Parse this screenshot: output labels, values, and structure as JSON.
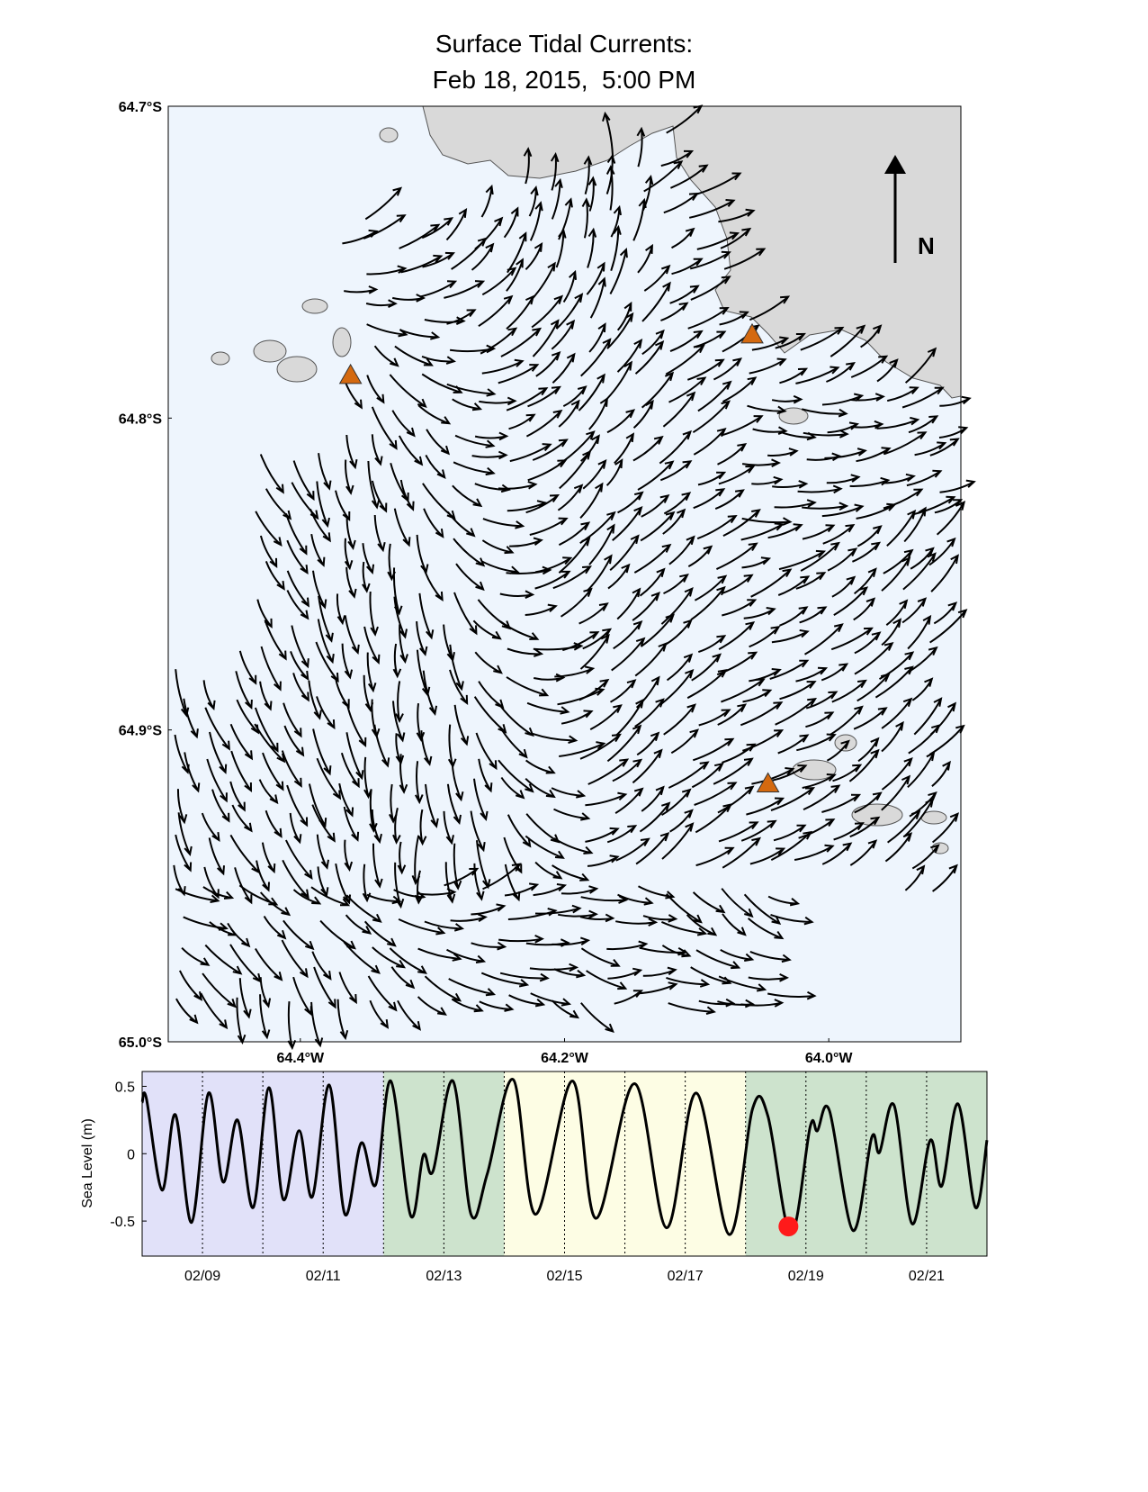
{
  "chart_data": [
    {
      "type": "map",
      "title": "Surface Tidal Currents:",
      "subtitle": "Feb 18, 2015,  5:00 PM",
      "xlim": [
        -64.5,
        -63.9
      ],
      "xticks": [
        {
          "value": -64.4,
          "label": "64.4°W"
        },
        {
          "value": -64.2,
          "label": "64.2°W"
        },
        {
          "value": -64.0,
          "label": "64.0°W"
        }
      ],
      "ylim": [
        -65.0,
        -64.7
      ],
      "yticks": [
        {
          "value": -64.7,
          "label": "64.7°S"
        },
        {
          "value": -64.8,
          "label": "64.8°S"
        },
        {
          "value": -64.9,
          "label": "64.9°S"
        },
        {
          "value": -65.0,
          "label": "65.0°S"
        }
      ],
      "stations": {
        "lon": [
          -64.362,
          -64.058,
          -64.046
        ],
        "lat": [
          -64.786,
          -64.773,
          -64.917
        ],
        "color": "#d4690f"
      },
      "north_label": "N",
      "water_color": "#eef5fd",
      "land_color": "#d9d9d9"
    },
    {
      "type": "line",
      "ylabel": "Sea Level (m)",
      "color": "#000000",
      "x": [
        8.0,
        8.07,
        8.33,
        8.55,
        8.82,
        9.1,
        9.34,
        9.58,
        9.84,
        10.1,
        10.34,
        10.6,
        10.82,
        11.1,
        11.36,
        11.63,
        11.87,
        12.12,
        12.45,
        12.66,
        12.82,
        13.15,
        13.45,
        13.72,
        14.15,
        14.52,
        15.13,
        15.52,
        16.16,
        16.69,
        17.18,
        17.73,
        18.12,
        18.37,
        18.75,
        19.07,
        19.19,
        19.39,
        19.78,
        20.09,
        20.22,
        20.46,
        20.76,
        21.06,
        21.25,
        21.52,
        21.81,
        22.0
      ],
      "values": [
        0.38,
        0.41,
        -0.27,
        0.29,
        -0.51,
        0.45,
        -0.21,
        0.25,
        -0.4,
        0.49,
        -0.34,
        0.17,
        -0.32,
        0.51,
        -0.45,
        0.08,
        -0.23,
        0.54,
        -0.46,
        -0.01,
        -0.13,
        0.54,
        -0.45,
        -0.15,
        0.55,
        -0.45,
        0.54,
        -0.48,
        0.52,
        -0.55,
        0.45,
        -0.6,
        0.34,
        0.28,
        -0.6,
        0.2,
        0.17,
        0.32,
        -0.57,
        0.12,
        0.01,
        0.36,
        -0.52,
        0.1,
        -0.24,
        0.37,
        -0.4,
        0.1
      ],
      "xlim": [
        8,
        22
      ],
      "xticks": [
        {
          "value": 9,
          "label": "02/09"
        },
        {
          "value": 11,
          "label": "02/11"
        },
        {
          "value": 13,
          "label": "02/13"
        },
        {
          "value": 15,
          "label": "02/15"
        },
        {
          "value": 17,
          "label": "02/17"
        },
        {
          "value": 19,
          "label": "02/19"
        },
        {
          "value": 21,
          "label": "02/21"
        }
      ],
      "xminorticks": [
        10,
        12,
        14,
        16,
        18,
        20
      ],
      "ylim": [
        -0.76,
        0.61
      ],
      "yticks": [
        0.5,
        0,
        -0.5
      ],
      "bands": [
        {
          "start": 8,
          "end": 12,
          "color": "#e1e1f9"
        },
        {
          "start": 12,
          "end": 14,
          "color": "#cde3cd"
        },
        {
          "start": 14,
          "end": 18,
          "color": "#fdfde4"
        },
        {
          "start": 18,
          "end": 22,
          "color": "#cde3cd"
        }
      ],
      "marker": {
        "x": 18.71,
        "value": -0.54,
        "color": "#ff1a1a"
      }
    }
  ]
}
